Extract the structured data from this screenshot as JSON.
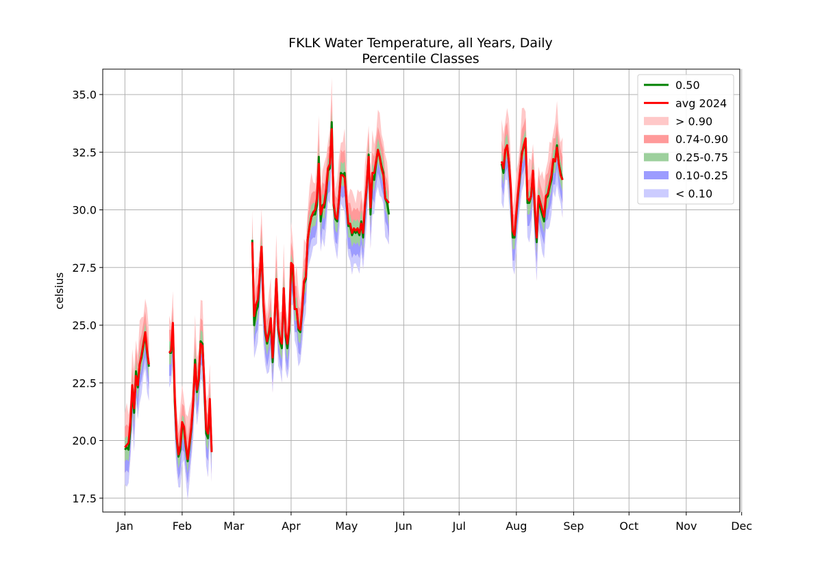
{
  "chart_data": {
    "type": "area",
    "title": "FKLK Water Temperature, all Years, Daily",
    "subtitle": "Percentile Classes",
    "ylabel": "celsius",
    "xlabel": "",
    "ylim": [
      16.9,
      36.1
    ],
    "xlim": [
      -12,
      333
    ],
    "grid": true,
    "legend_position": "top-right",
    "x_ticks": [
      {
        "label": "Jan",
        "day": 0
      },
      {
        "label": "Feb",
        "day": 31
      },
      {
        "label": "Mar",
        "day": 59
      },
      {
        "label": "Apr",
        "day": 90
      },
      {
        "label": "May",
        "day": 120
      },
      {
        "label": "Jun",
        "day": 151
      },
      {
        "label": "Jul",
        "day": 181
      },
      {
        "label": "Aug",
        "day": 212
      },
      {
        "label": "Sep",
        "day": 243
      },
      {
        "label": "Oct",
        "day": 273
      },
      {
        "label": "Nov",
        "day": 304
      },
      {
        "label": "Dec",
        "day": 334
      }
    ],
    "y_ticks": [
      "17.5",
      "20.0",
      "22.5",
      "25.0",
      "27.5",
      "30.0",
      "32.5",
      "35.0"
    ],
    "y_tick_values": [
      17.5,
      20.0,
      22.5,
      25.0,
      27.5,
      30.0,
      32.5,
      35.0
    ],
    "legend": [
      {
        "label": "0.50",
        "kind": "line",
        "color": "#008000"
      },
      {
        "label": "avg 2024",
        "kind": "line",
        "color": "#ff0000"
      },
      {
        "label": "> 0.90",
        "kind": "patch",
        "color": "#ffc8c8"
      },
      {
        "label": "0.74-0.90",
        "kind": "patch",
        "color": "#ff9a9a"
      },
      {
        "label": "0.25-0.75",
        "kind": "patch",
        "color": "#9dd09d"
      },
      {
        "label": "0.10-0.25",
        "kind": "patch",
        "color": "#9c9cff"
      },
      {
        "label": "< 0.10",
        "kind": "patch",
        "color": "#ccccff"
      }
    ],
    "band_offsets": {
      "p0": -1.5,
      "p10": -1.0,
      "p25": -0.5,
      "p75": 0.5,
      "p90": 1.0,
      "p100": 1.6
    },
    "series": [
      {
        "name": "0.50",
        "segments": [
          {
            "start_day": 0,
            "values": [
              19.6,
              19.7,
              19.6,
              20.5,
              22.2,
              21.2,
              23.0,
              22.3,
              23.3,
              23.6,
              24.1,
              24.6,
              23.8,
              23.2
            ]
          },
          {
            "start_day": 24,
            "values": [
              23.8,
              23.8,
              24.8,
              21.7,
              20.1,
              19.3,
              19.6,
              20.6,
              20.5,
              19.7,
              19.1,
              19.8,
              20.5,
              21.6,
              23.5,
              22.1,
              22.6,
              24.3,
              24.2,
              22.3,
              20.3,
              20.1,
              21.6,
              19.5
            ]
          },
          {
            "start_day": 69,
            "values": [
              28.7,
              25.0,
              25.6,
              25.8,
              27.0,
              28.4,
              25.9,
              24.7,
              24.2,
              24.6,
              25.2,
              23.4,
              25.0,
              27.0,
              24.8,
              24.3,
              24.0,
              26.6,
              24.5,
              24.0,
              24.8,
              27.6,
              27.2,
              25.7,
              25.7,
              24.8,
              24.7,
              25.6,
              26.8,
              27.0,
              28.7,
              29.3,
              29.7,
              29.8,
              29.8,
              30.2,
              32.3,
              29.5,
              30.2,
              30.1,
              30.7,
              31.7,
              31.8,
              33.8,
              30.2,
              29.6,
              29.5,
              30.5,
              31.6,
              31.5,
              31.6,
              30.3,
              29.3,
              29.3,
              28.9,
              29.1,
              29.0,
              29.1,
              28.9,
              29.5,
              28.8,
              30.1,
              31.0,
              32.4,
              29.8,
              31.5,
              31.3,
              32.0,
              32.6,
              32.3,
              31.9,
              31.6,
              30.5,
              30.3,
              29.8
            ]
          },
          {
            "start_day": 204,
            "values": [
              32.0,
              31.6,
              32.6,
              32.8,
              32.0,
              30.8,
              28.8,
              28.8,
              29.8,
              30.7,
              31.5,
              32.5,
              32.7,
              33.0,
              30.3,
              30.3,
              30.6,
              31.6,
              29.9,
              28.6,
              30.5,
              30.1,
              29.8,
              29.5,
              30.5,
              30.6,
              31.0,
              31.3,
              32.1,
              32.1,
              32.8,
              32.0,
              31.6,
              31.3
            ]
          }
        ]
      },
      {
        "name": "avg 2024",
        "segments": [
          {
            "start_day": 0,
            "values": [
              19.7,
              19.8,
              19.9,
              20.8,
              22.4,
              21.4,
              22.8,
              22.4,
              23.3,
              23.7,
              24.2,
              24.7,
              23.9,
              23.3
            ]
          },
          {
            "start_day": 24,
            "values": [
              23.8,
              23.9,
              25.1,
              21.9,
              20.2,
              19.4,
              19.8,
              20.8,
              20.6,
              19.8,
              19.2,
              19.9,
              20.6,
              21.7,
              23.3,
              22.2,
              22.7,
              24.2,
              24.1,
              22.5,
              20.5,
              20.3,
              21.8,
              19.5
            ]
          },
          {
            "start_day": 69,
            "values": [
              28.6,
              25.4,
              25.9,
              26.1,
              27.1,
              28.4,
              26.0,
              24.8,
              24.3,
              24.7,
              25.3,
              23.6,
              25.1,
              27.0,
              24.9,
              24.4,
              24.2,
              26.6,
              24.7,
              24.2,
              25.0,
              27.7,
              27.6,
              25.7,
              25.7,
              24.9,
              24.8,
              25.7,
              26.9,
              27.1,
              28.7,
              29.3,
              29.7,
              29.9,
              30.0,
              30.5,
              32.0,
              29.8,
              30.1,
              30.3,
              30.9,
              31.8,
              32.0,
              33.5,
              30.3,
              29.7,
              29.6,
              30.5,
              31.5,
              31.5,
              31.4,
              30.4,
              29.4,
              29.4,
              29.0,
              29.2,
              29.1,
              29.2,
              29.0,
              29.4,
              29.0,
              30.2,
              31.1,
              32.3,
              30.1,
              31.6,
              31.6,
              32.1,
              32.6,
              32.3,
              31.8,
              31.5,
              30.5,
              30.4,
              30.3
            ]
          },
          {
            "start_day": 204,
            "values": [
              32.1,
              31.8,
              32.6,
              32.8,
              32.0,
              31.0,
              29.1,
              28.9,
              29.9,
              30.8,
              31.6,
              32.4,
              32.8,
              33.1,
              30.5,
              30.4,
              30.6,
              31.7,
              30.1,
              28.8,
              30.6,
              30.3,
              30.0,
              29.7,
              30.6,
              30.7,
              31.1,
              31.5,
              32.2,
              32.1,
              32.7,
              32.0,
              31.5,
              31.3
            ]
          }
        ]
      }
    ]
  }
}
